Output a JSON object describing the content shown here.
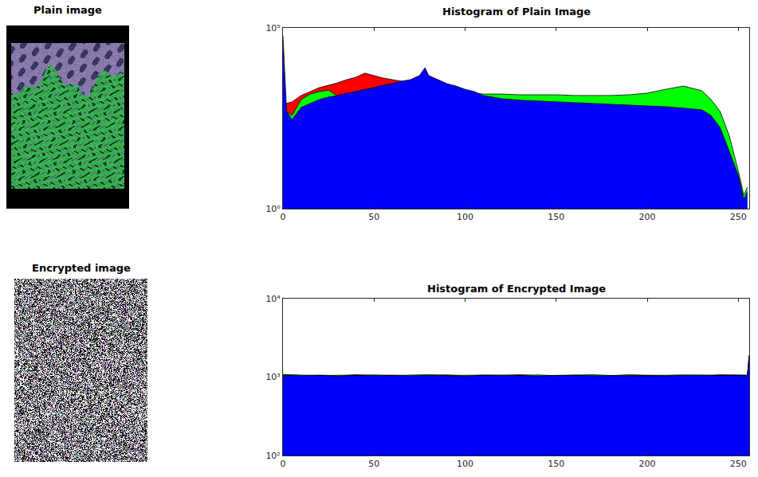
{
  "chart_data": [
    {
      "type": "image",
      "title": "Plain image"
    },
    {
      "type": "image",
      "title": "Encrypted image"
    },
    {
      "type": "area",
      "title": "Histogram of Plain Image",
      "x": [
        0,
        2,
        5,
        10,
        15,
        20,
        25,
        30,
        35,
        40,
        45,
        50,
        55,
        60,
        65,
        70,
        75,
        78,
        80,
        85,
        90,
        95,
        100,
        105,
        110,
        115,
        120,
        130,
        140,
        150,
        160,
        170,
        180,
        190,
        200,
        210,
        220,
        230,
        235,
        240,
        245,
        250,
        253,
        255
      ],
      "series": [
        {
          "color": "#ff0000",
          "values": [
            1040,
            810,
            900,
            1350,
            1730,
            2220,
            2590,
            3020,
            3700,
            4300,
            5600,
            4800,
            4100,
            3700,
            3340,
            3160,
            3700,
            4100,
            3700,
            3160,
            2590,
            2220,
            1900,
            1650,
            1350,
            1150,
            1040,
            940,
            810,
            770,
            730,
            700,
            660,
            630,
            600,
            565,
            490,
            440,
            325,
            137,
            30,
            6.5,
            1.8,
            2.4
          ]
        },
        {
          "color": "#00ff00",
          "values": [
            630,
            490,
            380,
            1040,
            1480,
            1730,
            1900,
            1300,
            1480,
            1650,
            1900,
            2130,
            2350,
            2870,
            3160,
            3160,
            3700,
            4100,
            3700,
            3020,
            2460,
            2130,
            1820,
            1560,
            1480,
            1480,
            1480,
            1410,
            1410,
            1410,
            1350,
            1350,
            1350,
            1410,
            1560,
            2000,
            2460,
            1820,
            1040,
            490,
            105,
            11,
            2.4,
            3.9
          ]
        },
        {
          "color": "#0000ff",
          "values": [
            60000,
            490,
            290,
            630,
            810,
            1040,
            1220,
            1350,
            1560,
            1730,
            2000,
            2220,
            2590,
            2870,
            3340,
            3700,
            4800,
            7900,
            4800,
            3700,
            2870,
            2460,
            2000,
            1730,
            1350,
            1220,
            1100,
            1000,
            940,
            900,
            850,
            810,
            770,
            730,
            700,
            660,
            600,
            540,
            380,
            175,
            39,
            8.4,
            1.8,
            3
          ]
        }
      ],
      "xlim": [
        0,
        256
      ],
      "xticks": [
        0,
        50,
        100,
        150,
        200,
        250
      ],
      "ylim": [
        1,
        100000
      ],
      "yticks": [
        {
          "value": 1,
          "label": "10⁰"
        },
        {
          "value": 100000,
          "label": "10⁵"
        }
      ],
      "log": "y",
      "grid": false
    },
    {
      "type": "area",
      "title": "Histogram of Encrypted Image",
      "x": [
        0,
        10,
        20,
        30,
        40,
        50,
        60,
        70,
        80,
        90,
        100,
        110,
        120,
        130,
        140,
        150,
        160,
        170,
        180,
        190,
        200,
        210,
        220,
        230,
        240,
        250,
        255,
        256
      ],
      "series": [
        {
          "color": "#ff0000",
          "values": [
            1080,
            1050,
            1060,
            1040,
            1070,
            1050,
            1060,
            1045,
            1055,
            1065,
            1040,
            1060,
            1050,
            1070,
            1045,
            1055,
            1060,
            1050,
            1040,
            1065,
            1055,
            1050,
            1060,
            1045,
            1070,
            1050,
            1055,
            1900
          ]
        },
        {
          "color": "#00ff00",
          "values": [
            1070,
            1060,
            1045,
            1055,
            1050,
            1065,
            1040,
            1060,
            1070,
            1050,
            1055,
            1045,
            1060,
            1050,
            1065,
            1040,
            1055,
            1070,
            1050,
            1060,
            1045,
            1055,
            1050,
            1065,
            1040,
            1060,
            1050,
            1880
          ]
        },
        {
          "color": "#0000ff",
          "values": [
            1050,
            1040,
            1050,
            1030,
            1045,
            1040,
            1035,
            1040,
            1045,
            1040,
            1030,
            1050,
            1040,
            1045,
            1035,
            1040,
            1050,
            1040,
            1035,
            1045,
            1040,
            1035,
            1045,
            1040,
            1050,
            1040,
            1045,
            1850
          ]
        }
      ],
      "xlim": [
        0,
        256
      ],
      "xticks": [
        0,
        50,
        100,
        150,
        200,
        250
      ],
      "ylim": [
        100,
        10000
      ],
      "yticks": [
        {
          "value": 100,
          "label": "10²"
        },
        {
          "value": 1000,
          "label": "10³"
        },
        {
          "value": 10000,
          "label": "10⁴"
        }
      ],
      "log": "y",
      "grid": false
    }
  ]
}
